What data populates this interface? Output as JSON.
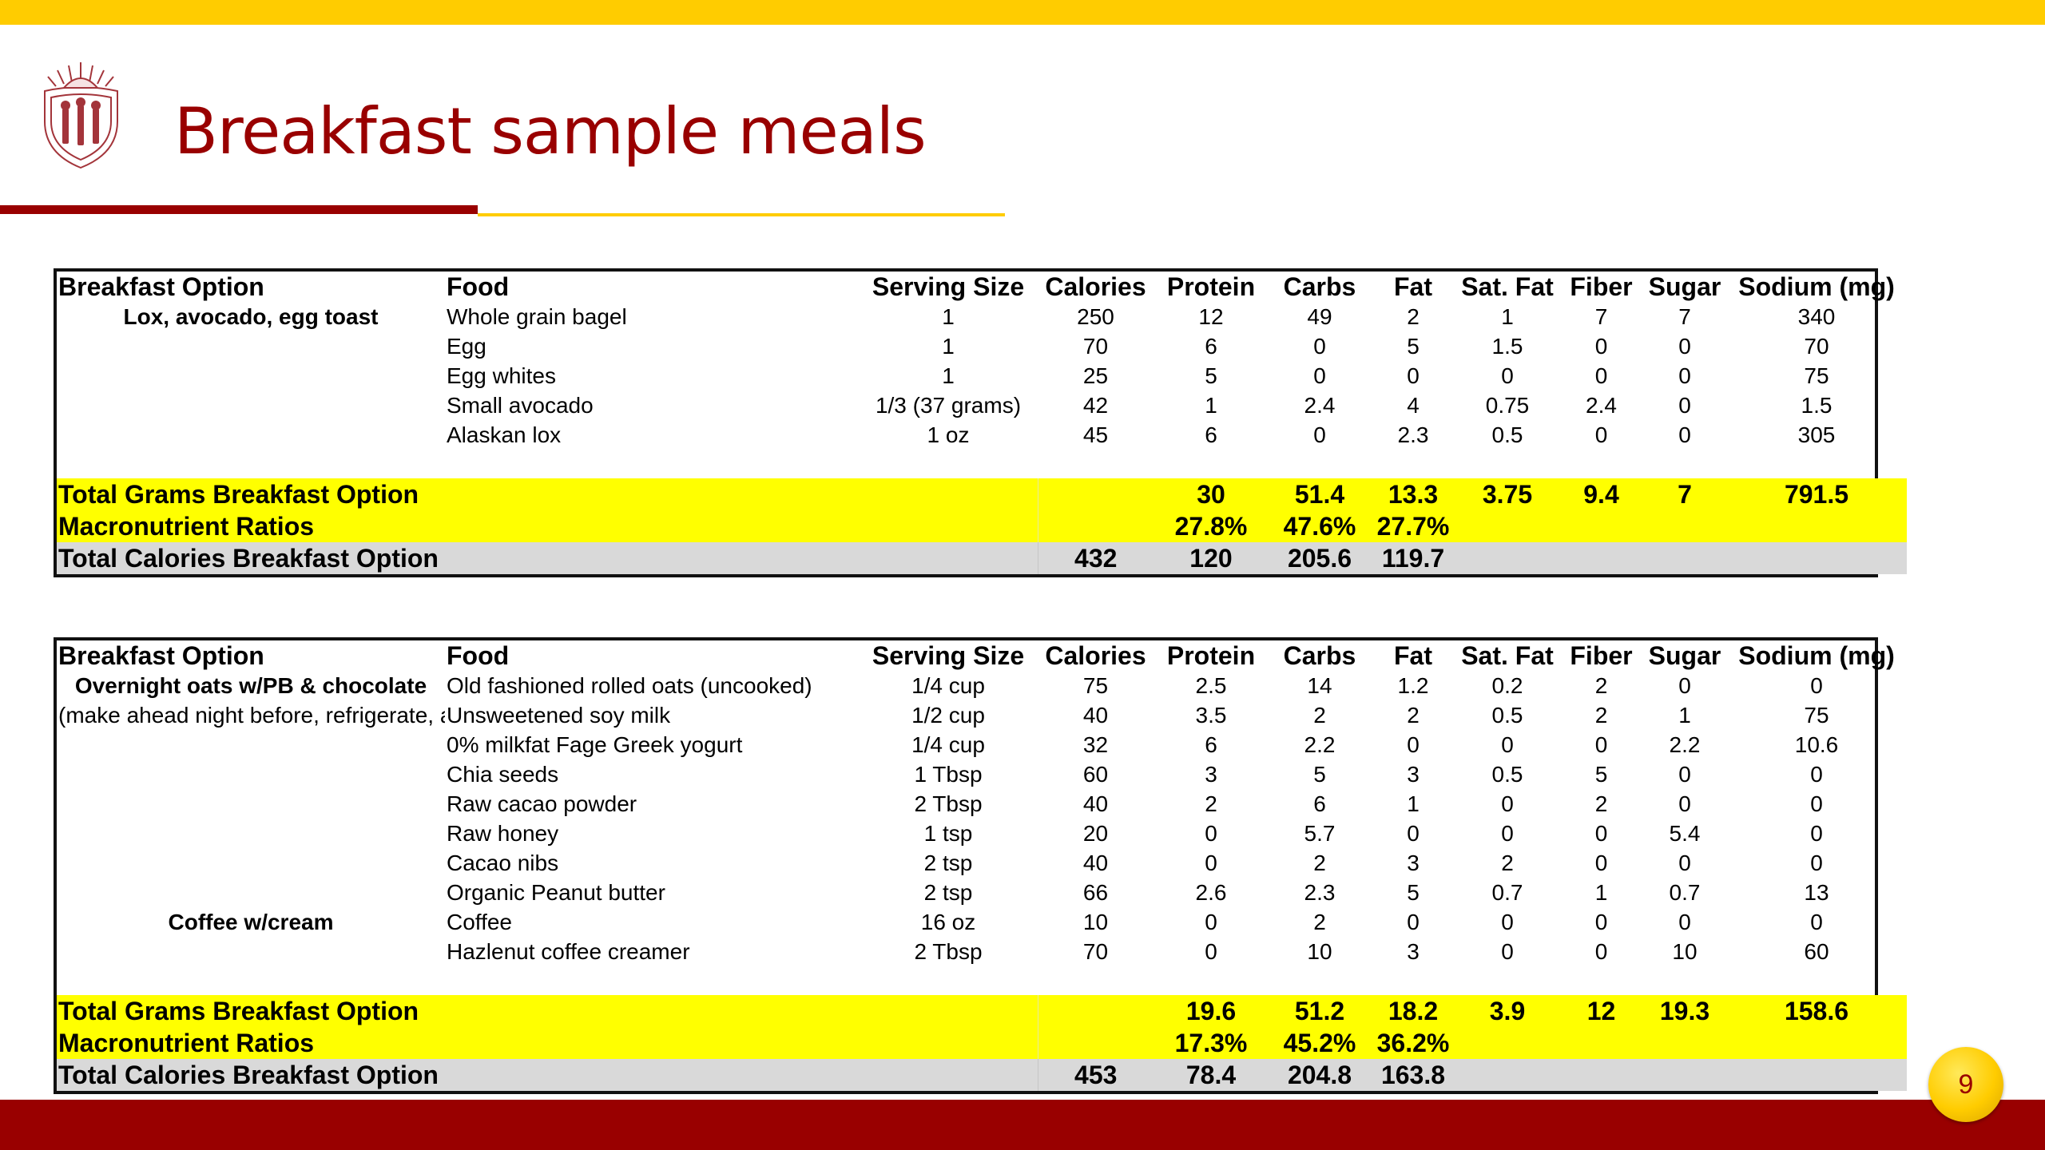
{
  "slide": {
    "title": "Breakfast sample meals",
    "page_number": "9",
    "colors": {
      "gold": "#ffcc00",
      "cardinal": "#990000",
      "highlight": "#ffff00",
      "gray_row": "#d9d9d9"
    }
  },
  "logo": {
    "icon": "university-seal-icon"
  },
  "columns": [
    "Breakfast Option",
    "Food",
    "Serving Size",
    "Calories",
    "Protein",
    "Carbs",
    "Fat",
    "Sat. Fat",
    "Fiber",
    "Sugar",
    "Sodium (mg)"
  ],
  "tables": [
    {
      "rows": [
        {
          "option": "Lox, avocado, egg toast",
          "note": "",
          "food": "Whole grain bagel",
          "serving": "1",
          "calories": "250",
          "protein": "12",
          "carbs": "49",
          "fat": "2",
          "satfat": "1",
          "fiber": "7",
          "sugar": "7",
          "sodium": "340"
        },
        {
          "option": "",
          "note": "",
          "food": "Egg",
          "serving": "1",
          "calories": "70",
          "protein": "6",
          "carbs": "0",
          "fat": "5",
          "satfat": "1.5",
          "fiber": "0",
          "sugar": "0",
          "sodium": "70"
        },
        {
          "option": "",
          "note": "",
          "food": "Egg whites",
          "serving": "1",
          "calories": "25",
          "protein": "5",
          "carbs": "0",
          "fat": "0",
          "satfat": "0",
          "fiber": "0",
          "sugar": "0",
          "sodium": "75"
        },
        {
          "option": "",
          "note": "",
          "food": "Small avocado",
          "serving": "1/3 (37 grams)",
          "calories": "42",
          "protein": "1",
          "carbs": "2.4",
          "fat": "4",
          "satfat": "0.75",
          "fiber": "2.4",
          "sugar": "0",
          "sodium": "1.5"
        },
        {
          "option": "",
          "note": "",
          "food": "Alaskan lox",
          "serving": "1 oz",
          "calories": "45",
          "protein": "6",
          "carbs": "0",
          "fat": "2.3",
          "satfat": "0.5",
          "fiber": "0",
          "sugar": "0",
          "sodium": "305"
        }
      ],
      "totals": {
        "label": "Total Grams Breakfast Option",
        "protein": "30",
        "carbs": "51.4",
        "fat": "13.3",
        "satfat": "3.75",
        "fiber": "9.4",
        "sugar": "7",
        "sodium": "791.5"
      },
      "ratios": {
        "label": "Macronutrient Ratios",
        "protein": "27.8%",
        "carbs": "47.6%",
        "fat": "27.7%"
      },
      "calories": {
        "label": "Total Calories Breakfast Option",
        "total": "432",
        "protein": "120",
        "carbs": "205.6",
        "fat": "119.7"
      }
    },
    {
      "rows": [
        {
          "option": "Overnight oats w/PB & chocolate",
          "note": "",
          "food": "Old fashioned rolled oats (uncooked)",
          "serving": "1/4 cup",
          "calories": "75",
          "protein": "2.5",
          "carbs": "14",
          "fat": "1.2",
          "satfat": "0.2",
          "fiber": "2",
          "sugar": "0",
          "sodium": "0"
        },
        {
          "option": "",
          "note": "(make ahead night before, refrigerate, add PB in morning)",
          "food": "Unsweetened soy milk",
          "serving": "1/2 cup",
          "calories": "40",
          "protein": "3.5",
          "carbs": "2",
          "fat": "2",
          "satfat": "0.5",
          "fiber": "2",
          "sugar": "1",
          "sodium": "75"
        },
        {
          "option": "",
          "note": "",
          "food": "0% milkfat Fage Greek yogurt",
          "serving": "1/4 cup",
          "calories": "32",
          "protein": "6",
          "carbs": "2.2",
          "fat": "0",
          "satfat": "0",
          "fiber": "0",
          "sugar": "2.2",
          "sodium": "10.6"
        },
        {
          "option": "",
          "note": "",
          "food": "Chia seeds",
          "serving": "1 Tbsp",
          "calories": "60",
          "protein": "3",
          "carbs": "5",
          "fat": "3",
          "satfat": "0.5",
          "fiber": "5",
          "sugar": "0",
          "sodium": "0"
        },
        {
          "option": "",
          "note": "",
          "food": "Raw cacao powder",
          "serving": "2 Tbsp",
          "calories": "40",
          "protein": "2",
          "carbs": "6",
          "fat": "1",
          "satfat": "0",
          "fiber": "2",
          "sugar": "0",
          "sodium": "0"
        },
        {
          "option": "",
          "note": "",
          "food": "Raw honey",
          "serving": "1 tsp",
          "calories": "20",
          "protein": "0",
          "carbs": "5.7",
          "fat": "0",
          "satfat": "0",
          "fiber": "0",
          "sugar": "5.4",
          "sodium": "0"
        },
        {
          "option": "",
          "note": "",
          "food": "Cacao nibs",
          "serving": "2 tsp",
          "calories": "40",
          "protein": "0",
          "carbs": "2",
          "fat": "3",
          "satfat": "2",
          "fiber": "0",
          "sugar": "0",
          "sodium": "0"
        },
        {
          "option": "",
          "note": "",
          "food": "Organic Peanut butter",
          "serving": "2 tsp",
          "calories": "66",
          "protein": "2.6",
          "carbs": "2.3",
          "fat": "5",
          "satfat": "0.7",
          "fiber": "1",
          "sugar": "0.7",
          "sodium": "13"
        },
        {
          "option": "Coffee w/cream",
          "note": "",
          "food": "Coffee",
          "serving": "16 oz",
          "calories": "10",
          "protein": "0",
          "carbs": "2",
          "fat": "0",
          "satfat": "0",
          "fiber": "0",
          "sugar": "0",
          "sodium": "0"
        },
        {
          "option": "",
          "note": "",
          "food": "Hazlenut coffee creamer",
          "serving": "2 Tbsp",
          "calories": "70",
          "protein": "0",
          "carbs": "10",
          "fat": "3",
          "satfat": "0",
          "fiber": "0",
          "sugar": "10",
          "sodium": "60"
        }
      ],
      "totals": {
        "label": "Total Grams Breakfast Option",
        "protein": "19.6",
        "carbs": "51.2",
        "fat": "18.2",
        "satfat": "3.9",
        "fiber": "12",
        "sugar": "19.3",
        "sodium": "158.6"
      },
      "ratios": {
        "label": "Macronutrient Ratios",
        "protein": "17.3%",
        "carbs": "45.2%",
        "fat": "36.2%"
      },
      "calories": {
        "label": "Total Calories Breakfast Option",
        "total": "453",
        "protein": "78.4",
        "carbs": "204.8",
        "fat": "163.8"
      }
    }
  ]
}
